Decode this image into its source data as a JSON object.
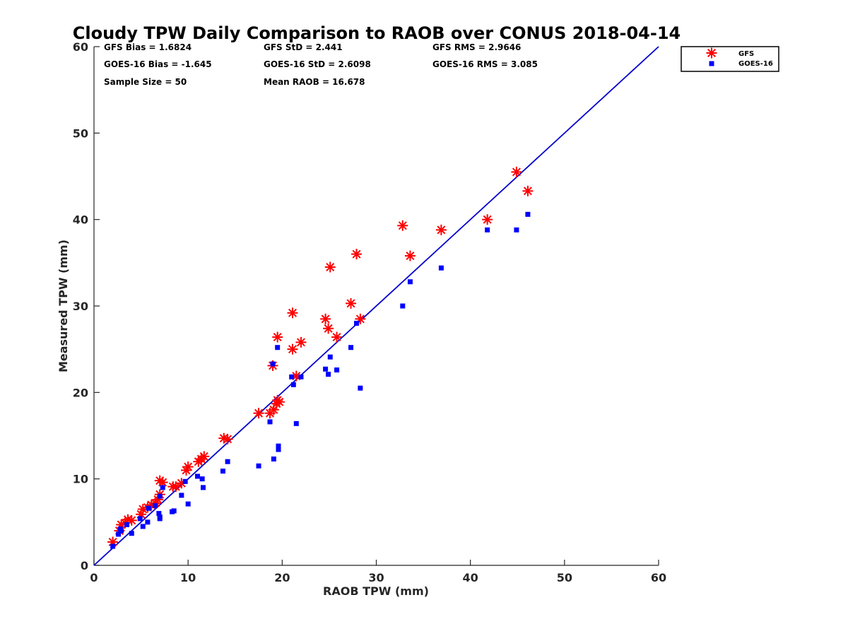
{
  "chart_data": {
    "type": "scatter",
    "title": "Cloudy TPW Daily Comparison to RAOB over CONUS 2018-04-14",
    "xlabel": "RAOB TPW (mm)",
    "ylabel": "Measured TPW (mm)",
    "xlim": [
      0,
      60
    ],
    "ylim": [
      0,
      60
    ],
    "xticks": [
      0,
      10,
      20,
      30,
      40,
      50,
      60
    ],
    "yticks": [
      0,
      10,
      20,
      30,
      40,
      50,
      60
    ],
    "grid": false,
    "legend_position": "top-right, outside plot",
    "reference_line": {
      "from": [
        0,
        0
      ],
      "to": [
        60,
        60
      ],
      "color": "#0000cc"
    },
    "stats": [
      "GFS Bias = 1.6824",
      "GFS StD = 2.441",
      "GFS RMS = 2.9646",
      "GOES-16 Bias = -1.645",
      "GOES-16 StD = 2.6098",
      "GOES-16 RMS = 3.085",
      "Sample Size = 50",
      "Mean RAOB = 16.678"
    ],
    "series": [
      {
        "name": "GFS",
        "marker": "asterisk",
        "color": "#ff0000",
        "points": [
          [
            2.0,
            2.7
          ],
          [
            2.7,
            4.0
          ],
          [
            2.9,
            4.7
          ],
          [
            3.3,
            4.9
          ],
          [
            3.6,
            5.3
          ],
          [
            4.0,
            5.2
          ],
          [
            5.0,
            5.9
          ],
          [
            5.2,
            6.5
          ],
          [
            5.7,
            6.7
          ],
          [
            6.1,
            7.0
          ],
          [
            6.5,
            7.2
          ],
          [
            6.8,
            7.6
          ],
          [
            7.0,
            8.2
          ],
          [
            7.0,
            9.8
          ],
          [
            7.3,
            9.6
          ],
          [
            8.4,
            9.1
          ],
          [
            8.7,
            9.1
          ],
          [
            9.3,
            9.5
          ],
          [
            9.8,
            11.0
          ],
          [
            10.0,
            11.4
          ],
          [
            11.1,
            12.0
          ],
          [
            11.4,
            12.3
          ],
          [
            11.7,
            12.6
          ],
          [
            13.8,
            14.7
          ],
          [
            14.2,
            14.6
          ],
          [
            17.5,
            17.6
          ],
          [
            18.7,
            17.6
          ],
          [
            19.1,
            18.0
          ],
          [
            19.4,
            18.7
          ],
          [
            19.5,
            19.1
          ],
          [
            19.7,
            18.9
          ],
          [
            19.0,
            23.1
          ],
          [
            19.5,
            26.4
          ],
          [
            21.1,
            25.0
          ],
          [
            21.5,
            21.9
          ],
          [
            22.0,
            25.8
          ],
          [
            21.1,
            29.2
          ],
          [
            24.6,
            28.5
          ],
          [
            24.9,
            27.4
          ],
          [
            25.1,
            34.5
          ],
          [
            25.8,
            26.4
          ],
          [
            27.3,
            30.3
          ],
          [
            27.9,
            36.0
          ],
          [
            28.3,
            28.5
          ],
          [
            32.8,
            39.3
          ],
          [
            33.6,
            35.8
          ],
          [
            36.9,
            38.8
          ],
          [
            41.8,
            40.0
          ],
          [
            44.9,
            45.5
          ],
          [
            46.1,
            43.3
          ]
        ]
      },
      {
        "name": "GOES-16",
        "marker": "square",
        "color": "#0000ff",
        "points": [
          [
            2.0,
            2.2
          ],
          [
            2.6,
            3.6
          ],
          [
            2.8,
            4.2
          ],
          [
            3.5,
            4.7
          ],
          [
            4.0,
            3.7
          ],
          [
            4.9,
            5.4
          ],
          [
            5.2,
            4.5
          ],
          [
            5.7,
            5.0
          ],
          [
            5.8,
            6.6
          ],
          [
            6.5,
            6.9
          ],
          [
            6.9,
            6.0
          ],
          [
            7.0,
            5.6
          ],
          [
            7.0,
            5.4
          ],
          [
            7.3,
            9.0
          ],
          [
            7.0,
            8.0
          ],
          [
            8.3,
            6.2
          ],
          [
            8.5,
            6.3
          ],
          [
            9.3,
            8.1
          ],
          [
            9.7,
            9.7
          ],
          [
            10.0,
            7.1
          ],
          [
            11.0,
            10.3
          ],
          [
            11.5,
            10.0
          ],
          [
            11.6,
            9.0
          ],
          [
            13.7,
            10.9
          ],
          [
            14.2,
            12.0
          ],
          [
            17.5,
            11.5
          ],
          [
            18.7,
            16.6
          ],
          [
            19.1,
            12.3
          ],
          [
            19.6,
            13.4
          ],
          [
            19.6,
            13.8
          ],
          [
            19.0,
            23.3
          ],
          [
            19.5,
            25.2
          ],
          [
            21.0,
            21.8
          ],
          [
            21.2,
            20.9
          ],
          [
            21.5,
            16.4
          ],
          [
            22.0,
            21.8
          ],
          [
            24.6,
            22.7
          ],
          [
            24.9,
            22.1
          ],
          [
            25.1,
            24.1
          ],
          [
            25.8,
            22.6
          ],
          [
            27.3,
            25.2
          ],
          [
            27.9,
            28.0
          ],
          [
            28.3,
            20.5
          ],
          [
            32.8,
            30.0
          ],
          [
            33.6,
            32.8
          ],
          [
            36.9,
            34.4
          ],
          [
            41.8,
            38.8
          ],
          [
            44.9,
            38.8
          ],
          [
            46.1,
            40.6
          ],
          [
            2.9,
            4.0
          ]
        ]
      }
    ]
  }
}
